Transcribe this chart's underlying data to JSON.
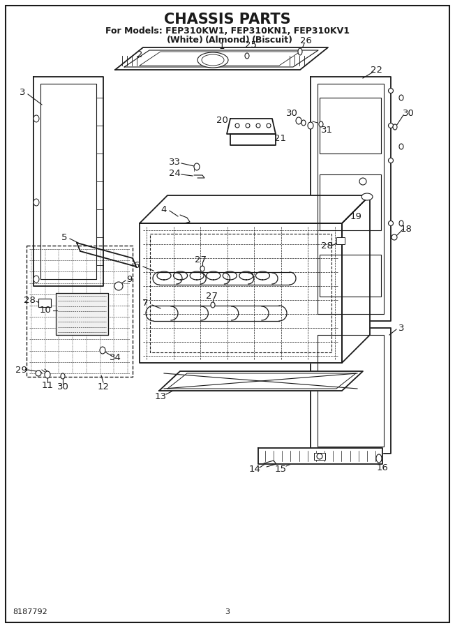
{
  "title": "CHASSIS PARTS",
  "subtitle_line1": "For Models: FEP310KW1, FEP310KN1, FEP310KV1",
  "subtitle_line2_parts": [
    "(White)",
    "(Almond)",
    "(Biscuit)"
  ],
  "doc_number": "8187792",
  "page_number": "3",
  "bg_color": "#ffffff",
  "line_color": "#1a1a1a",
  "title_fontsize": 15,
  "subtitle_fontsize": 9,
  "label_fontsize": 9.5,
  "border": true
}
